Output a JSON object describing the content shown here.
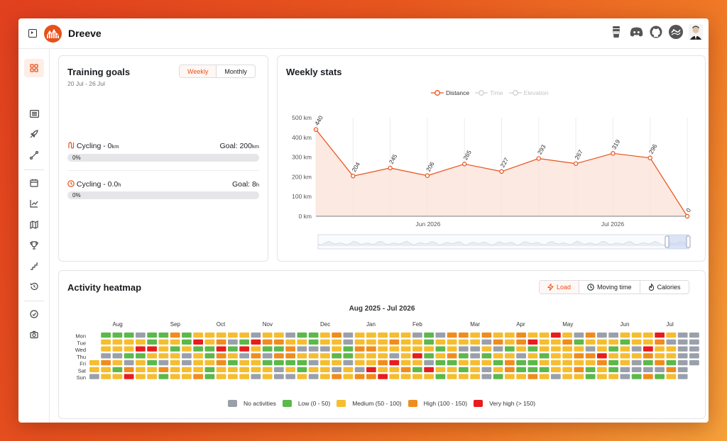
{
  "app": {
    "title": "Dreeve"
  },
  "topbar": {
    "icons": [
      "coffee-icon",
      "discord-icon",
      "github-icon",
      "strava-icon",
      "user-avatar"
    ]
  },
  "sidebar": {
    "items": [
      "dashboard-icon",
      "activities-icon",
      "rocket-icon",
      "route-icon",
      "calendar-icon",
      "chart-icon",
      "map-icon",
      "trophy-icon",
      "stairs-icon",
      "history-icon",
      "gauge-icon",
      "camera-icon"
    ]
  },
  "training_goals": {
    "title": "Training goals",
    "date_range": "20 Jul - 26 Jul",
    "tabs": [
      "Weekly",
      "Monthly"
    ],
    "goals": [
      {
        "label": "Cycling - 0",
        "unit": "km",
        "goal_label": "Goal: 200",
        "goal_unit": "km",
        "progress_text": "0%"
      },
      {
        "label": "Cycling - 0.0",
        "unit": "h",
        "goal_label": "Goal: 8",
        "goal_unit": "h",
        "progress_text": "0%"
      }
    ]
  },
  "weekly_stats": {
    "title": "Weekly stats",
    "legend": [
      "Distance",
      "Time",
      "Elevation"
    ]
  },
  "chart_data": {
    "type": "line",
    "ylabel": "",
    "yticks": [
      "0 km",
      "100 km",
      "200 km",
      "300 km",
      "400 km",
      "500 km"
    ],
    "ylim": [
      0,
      500
    ],
    "xticks": [
      "Jun 2026",
      "Jul 2026"
    ],
    "series": [
      {
        "name": "Distance",
        "values": [
          440,
          204,
          245,
          206,
          265,
          227,
          293,
          267,
          319,
          296,
          0
        ]
      }
    ],
    "colors": {
      "line": "#e8501a",
      "fill": "#fbe3da"
    }
  },
  "heatmap": {
    "title": "Activity heatmap",
    "subtitle": "Aug 2025 - Jul 2026",
    "tabs": [
      "Load",
      "Moving time",
      "Calories"
    ],
    "days": [
      "Mon",
      "Tue",
      "Wed",
      "Thu",
      "Fri",
      "Sat",
      "Sun"
    ],
    "months": [
      "Aug",
      "Sep",
      "Oct",
      "Nov",
      "Dec",
      "Jan",
      "Feb",
      "Mar",
      "Apr",
      "May",
      "Jun",
      "Jul"
    ],
    "legend": [
      {
        "label": "No activities",
        "color": "#9aa0ab"
      },
      {
        "label": "Low (0 - 50)",
        "color": "#5cb84a"
      },
      {
        "label": "Medium (50 - 100)",
        "color": "#f5bd2f"
      },
      {
        "label": "High (100 - 150)",
        "color": "#f08c1e"
      },
      {
        "label": "Very high (> 150)",
        "color": "#e81c1c"
      }
    ]
  }
}
